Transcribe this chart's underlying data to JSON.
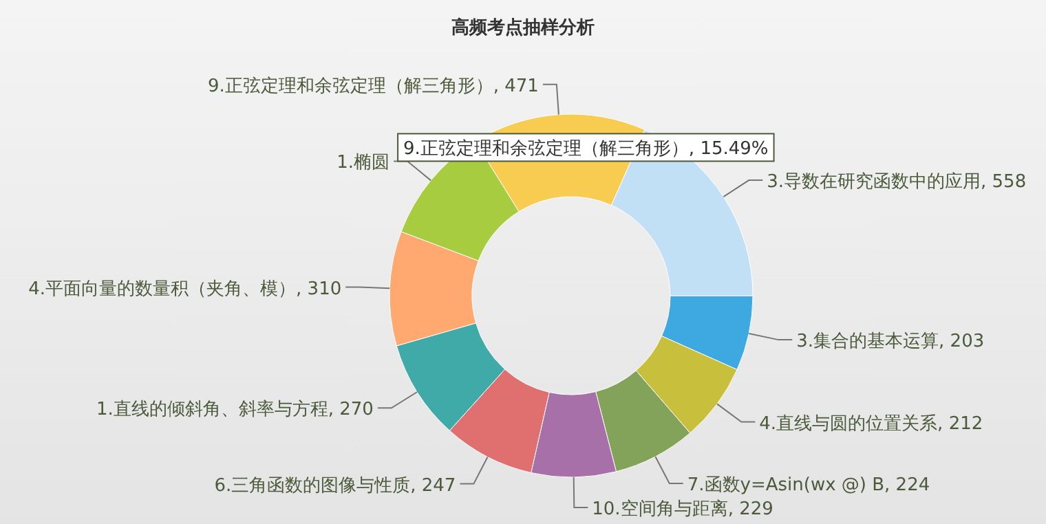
{
  "chart_data": {
    "type": "donut",
    "title": "高频考点抽样分析",
    "categories": [
      "3.集合的基本运算",
      "4.直线与圆的位置关系",
      "7.函数y=Asin(wx @) B",
      "10.空间角与距离",
      "6.三角函数的图像与性质",
      "1.直线的倾斜角、斜率与方程",
      "4.平面向量的数量积（夹角、模）",
      "1.椭圆",
      "9.正弦定理和余弦定理（解三角形）",
      "3.导数在研究函数中的应用"
    ],
    "values": [
      203,
      212,
      224,
      229,
      247,
      270,
      310,
      317,
      471,
      558
    ],
    "value_labels": [
      "203",
      "212",
      "224",
      "229",
      "247",
      "270",
      "310",
      null,
      "471",
      "558"
    ],
    "colors": [
      "#3ea8e0",
      "#c8c03c",
      "#84a35a",
      "#a870a8",
      "#e07070",
      "#40aaa8",
      "#ffa870",
      "#a8cc40",
      "#f8cc50",
      "#c2e0f5"
    ],
    "annotations": [
      "9.正弦定理和余弦定理（解三角形）, 15.49%"
    ]
  }
}
